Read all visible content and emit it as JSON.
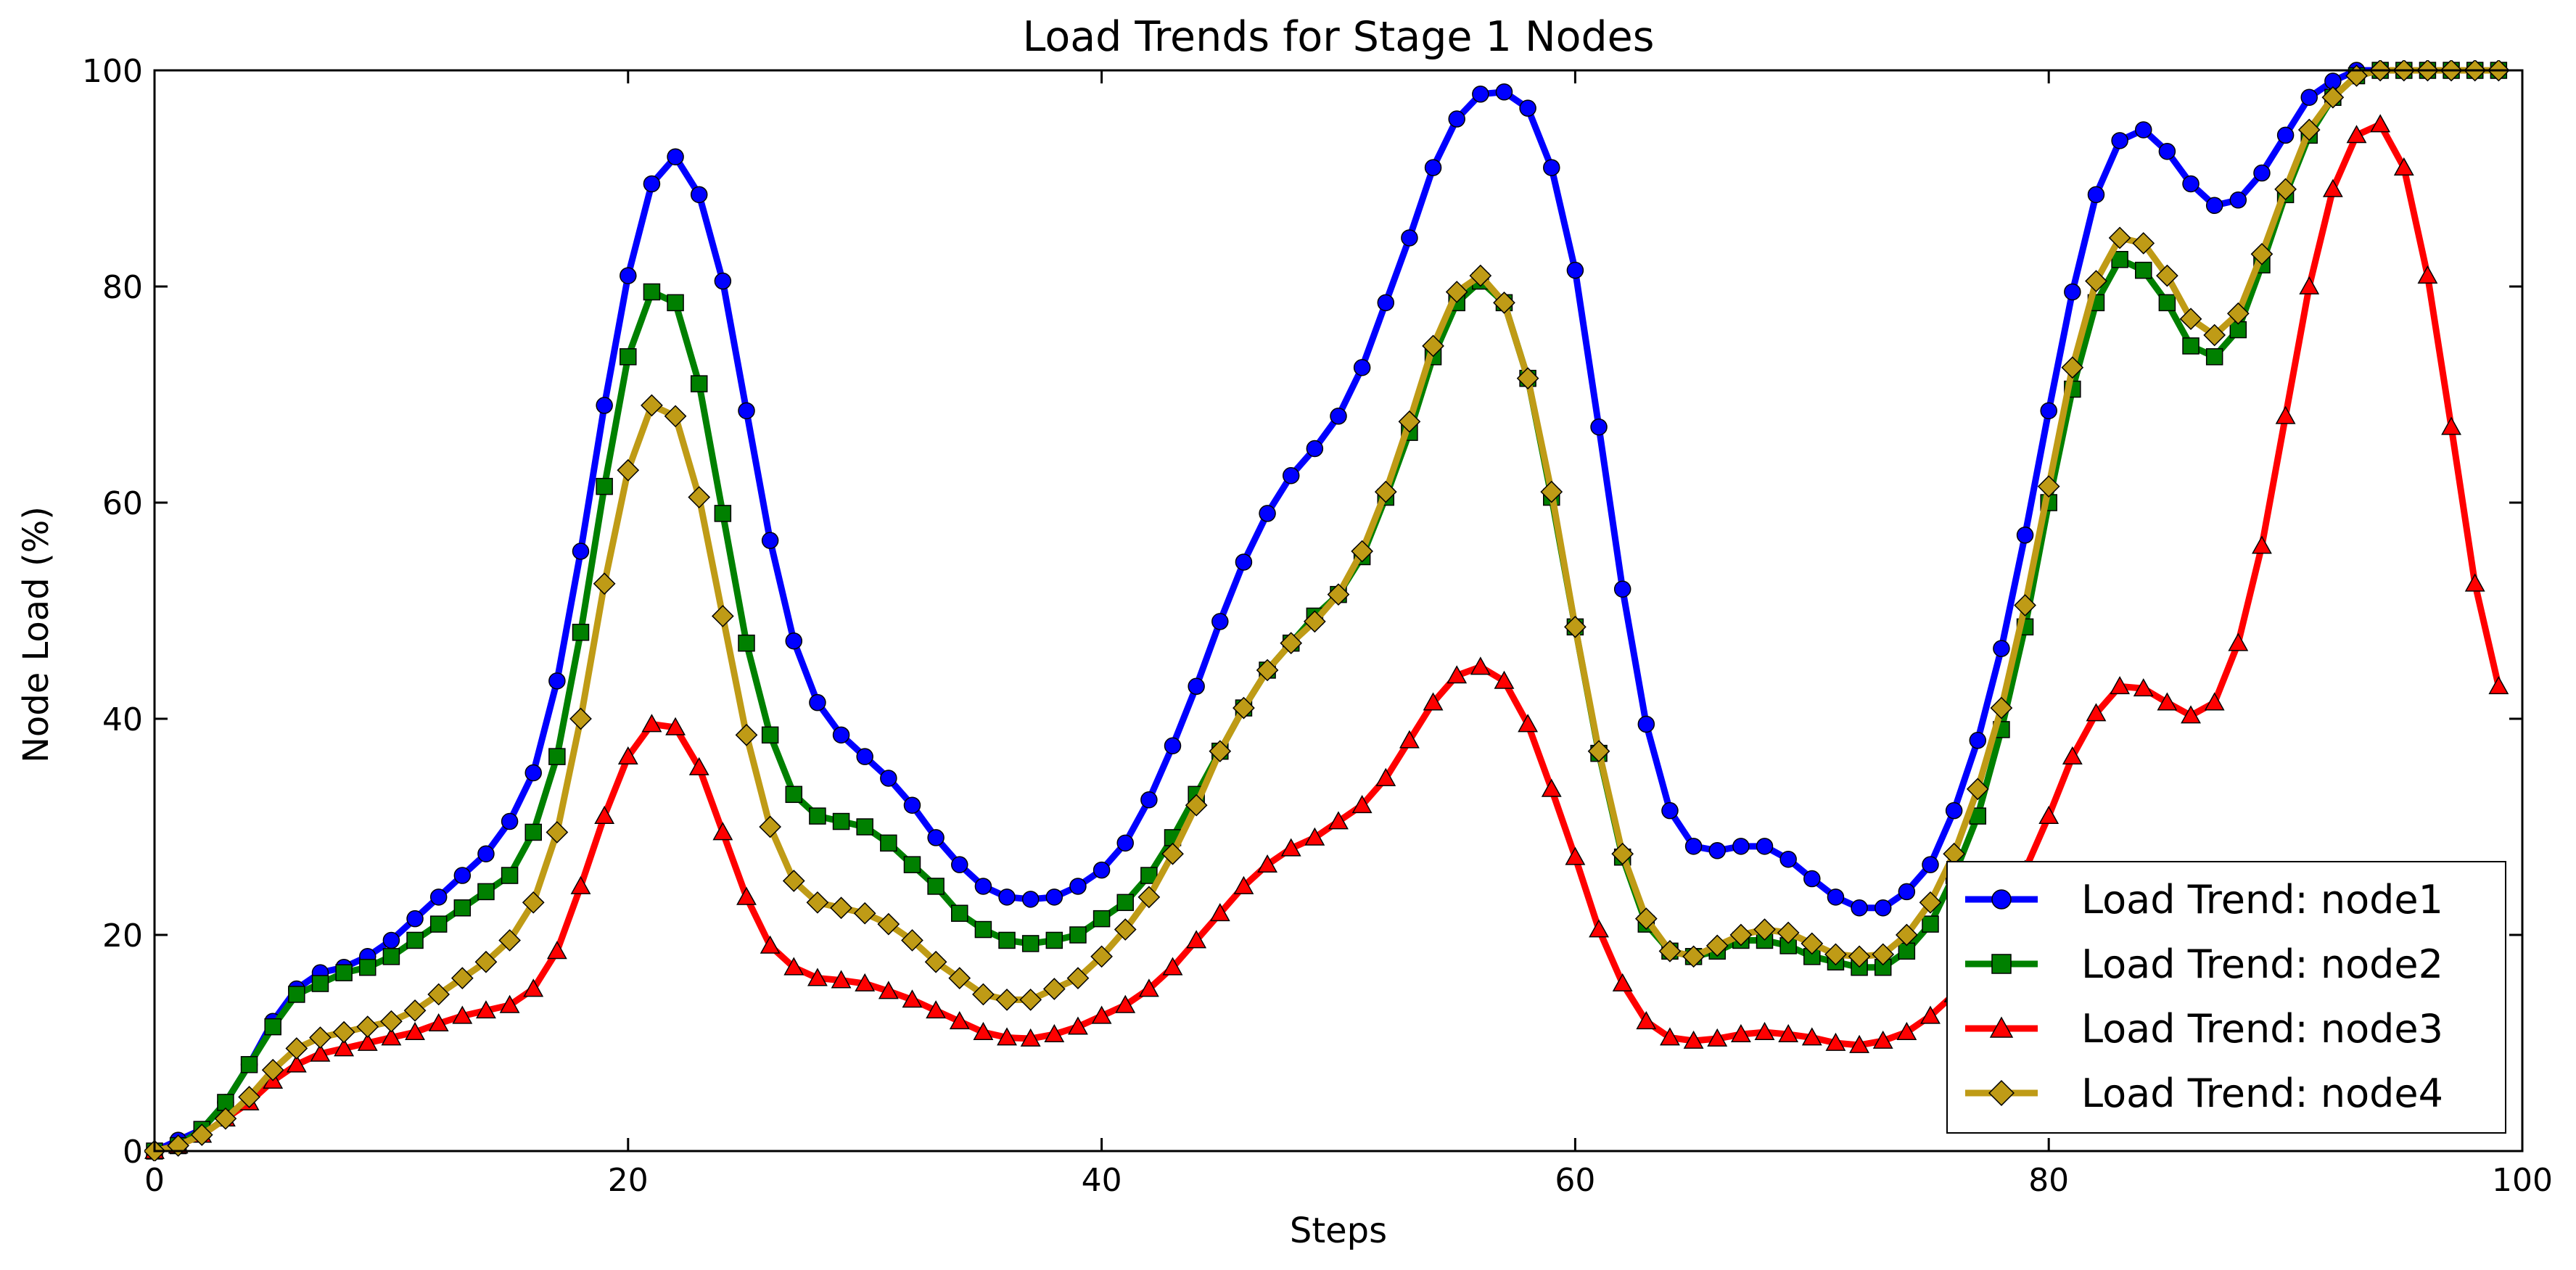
{
  "chart_data": {
    "type": "line",
    "title": "Load Trends for Stage 1 Nodes",
    "xlabel": "Steps",
    "ylabel": "Node Load (%)",
    "xlim": [
      0,
      100
    ],
    "ylim": [
      0,
      100
    ],
    "xticks": [
      0,
      20,
      40,
      60,
      80,
      100
    ],
    "yticks": [
      0,
      20,
      40,
      60,
      80,
      100
    ],
    "grid": false,
    "legend_position": "bottom-right",
    "x": [
      0,
      1,
      2,
      3,
      4,
      5,
      6,
      7,
      8,
      9,
      10,
      11,
      12,
      13,
      14,
      15,
      16,
      17,
      18,
      19,
      20,
      21,
      22,
      23,
      24,
      25,
      26,
      27,
      28,
      29,
      30,
      31,
      32,
      33,
      34,
      35,
      36,
      37,
      38,
      39,
      40,
      41,
      42,
      43,
      44,
      45,
      46,
      47,
      48,
      49,
      50,
      51,
      52,
      53,
      54,
      55,
      56,
      57,
      58,
      59,
      60,
      61,
      62,
      63,
      64,
      65,
      66,
      67,
      68,
      69,
      70,
      71,
      72,
      73,
      74,
      75,
      76,
      77,
      78,
      79,
      80,
      81,
      82,
      83,
      84,
      85,
      86,
      87,
      88,
      89,
      90,
      91,
      92,
      93,
      94,
      95,
      96,
      97,
      98,
      99
    ],
    "series": [
      {
        "name": "Load Trend: node1",
        "color": "#0000ff",
        "marker": "circle",
        "values": [
          0,
          1,
          2,
          4.5,
          8,
          12,
          15,
          16.5,
          17,
          18,
          19.5,
          21.5,
          23.5,
          25.5,
          27.5,
          30.5,
          35,
          43.5,
          55.5,
          69,
          81,
          89.5,
          92,
          88.5,
          80.5,
          68.5,
          56.5,
          47.2,
          41.5,
          38.5,
          36.5,
          34.5,
          32,
          29,
          26.5,
          24.5,
          23.5,
          23.3,
          23.5,
          24.5,
          26,
          28.5,
          32.5,
          37.5,
          43,
          49,
          54.5,
          59,
          62.5,
          65,
          68,
          72.5,
          78.5,
          84.5,
          91,
          95.5,
          97.8,
          98,
          96.5,
          91,
          81.5,
          67,
          52,
          39.5,
          31.5,
          28.2,
          27.8,
          28.2,
          28.2,
          27,
          25.2,
          23.5,
          22.5,
          22.5,
          24,
          26.5,
          31.5,
          38,
          46.5,
          57,
          68.5,
          79.5,
          88.5,
          93.5,
          94.5,
          92.5,
          89.5,
          87.5,
          88,
          90.5,
          94,
          97.5,
          99,
          100,
          100,
          100,
          100,
          100,
          100,
          100
        ]
      },
      {
        "name": "Load Trend: node2",
        "color": "#008000",
        "marker": "square",
        "values": [
          0,
          0.5,
          2,
          4.5,
          8,
          11.5,
          14.5,
          15.5,
          16.5,
          17,
          18,
          19.5,
          21,
          22.5,
          24,
          25.5,
          29.5,
          36.5,
          48,
          61.5,
          73.5,
          79.5,
          78.5,
          71,
          59,
          47,
          38.5,
          33,
          31,
          30.5,
          30,
          28.5,
          26.5,
          24.5,
          22,
          20.5,
          19.5,
          19.2,
          19.5,
          20,
          21.5,
          23,
          25.5,
          29,
          33,
          37,
          41,
          44.5,
          47,
          49.5,
          51.5,
          55,
          60.5,
          66.5,
          73.5,
          78.5,
          80.5,
          78.5,
          71.5,
          60.5,
          48.5,
          36.8,
          27.2,
          21,
          18.5,
          18,
          18.5,
          19.5,
          19.5,
          19,
          18,
          17.5,
          17,
          17,
          18.5,
          21,
          25.5,
          31,
          39,
          48.5,
          60,
          70.5,
          78.5,
          82.5,
          81.5,
          78.5,
          74.5,
          73.5,
          76,
          82,
          88.5,
          94,
          97.5,
          99.5,
          100,
          100,
          100,
          100,
          100,
          100
        ]
      },
      {
        "name": "Load Trend: node3",
        "color": "#ff0000",
        "marker": "triangle",
        "values": [
          0,
          0.5,
          1.5,
          3,
          4.5,
          6.5,
          8,
          9,
          9.5,
          10,
          10.5,
          11,
          11.8,
          12.5,
          13,
          13.5,
          15,
          18.5,
          24.5,
          31,
          36.5,
          39.5,
          39.2,
          35.5,
          29.5,
          23.5,
          19,
          17,
          16,
          15.8,
          15.5,
          14.8,
          14,
          13,
          12,
          11,
          10.5,
          10.4,
          10.8,
          11.5,
          12.5,
          13.5,
          15,
          17,
          19.5,
          22,
          24.5,
          26.5,
          28,
          29,
          30.5,
          32,
          34.5,
          38,
          41.5,
          44,
          44.8,
          43.5,
          39.5,
          33.5,
          27.2,
          20.5,
          15.5,
          12,
          10.5,
          10.2,
          10.4,
          10.8,
          11,
          10.8,
          10.5,
          10,
          9.8,
          10.2,
          11,
          12.5,
          14.5,
          17.5,
          21.5,
          26,
          31,
          36.5,
          40.5,
          43,
          42.8,
          41.5,
          40.3,
          41.5,
          47,
          56,
          68,
          80,
          89,
          94,
          95,
          91,
          81,
          67,
          52.5,
          43
        ]
      },
      {
        "name": "Load Trend: node4",
        "color": "#bf9b16",
        "marker": "diamond",
        "values": [
          0,
          0.5,
          1.5,
          3,
          5,
          7.5,
          9.5,
          10.5,
          11,
          11.5,
          12,
          13,
          14.5,
          16,
          17.5,
          19.5,
          23,
          29.5,
          40,
          52.5,
          63,
          69,
          68,
          60.5,
          49.5,
          38.5,
          30,
          25,
          23,
          22.5,
          22,
          21,
          19.5,
          17.5,
          16,
          14.5,
          14,
          14,
          15,
          16,
          18,
          20.5,
          23.5,
          27.5,
          32,
          37,
          41,
          44.5,
          47,
          49,
          51.5,
          55.5,
          61,
          67.5,
          74.5,
          79.5,
          81,
          78.5,
          71.5,
          61,
          48.5,
          37,
          27.5,
          21.5,
          18.5,
          18,
          19,
          20,
          20.5,
          20.2,
          19.2,
          18.2,
          18,
          18.2,
          20,
          23,
          27.5,
          33.5,
          41,
          50.5,
          61.5,
          72.5,
          80.5,
          84.5,
          84,
          81,
          77,
          75.5,
          77.5,
          83,
          89,
          94.5,
          97.5,
          99.5,
          100,
          100,
          100,
          100,
          100,
          100
        ]
      }
    ]
  }
}
